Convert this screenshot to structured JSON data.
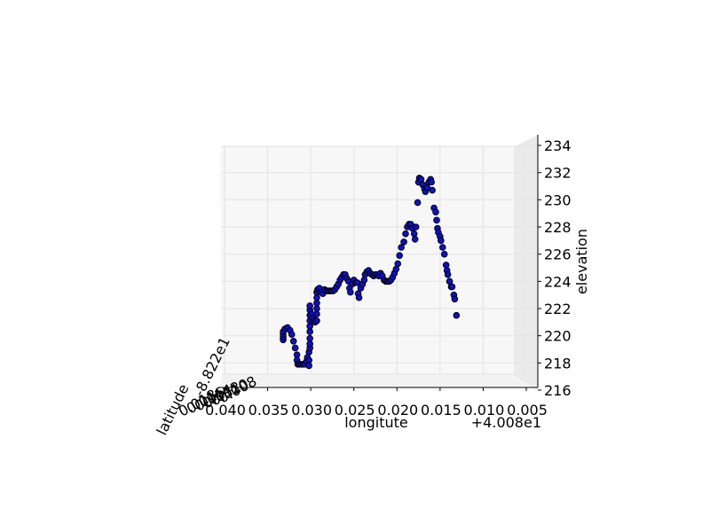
{
  "chart_data": {
    "type": "scatter",
    "projection": "3d",
    "xlabel": "longitute",
    "ylabel": "latitude",
    "zlabel": "elevation",
    "x_offset_label": "+4.008e1",
    "y_offset_label": "-8.822e1",
    "x_ticks": [
      "0.040",
      "0.035",
      "0.030",
      "0.025",
      "0.020",
      "0.015",
      "0.010",
      "0.005"
    ],
    "y_ticks": [
      "0.018",
      "0.016",
      "0.014",
      "0.012",
      "0.010",
      "0.008"
    ],
    "z_ticks": [
      "216",
      "218",
      "220",
      "222",
      "224",
      "226",
      "228",
      "230",
      "232",
      "234"
    ],
    "xlim": [
      0.04,
      0.005
    ],
    "zlim": [
      216,
      234
    ],
    "grid": true,
    "marker_color": "#1010c8",
    "marker_edge": "#000000",
    "pane_color": "#f2f2f2",
    "grid_color": "#e6e6e6",
    "points": [
      [
        0.0332,
        219.7
      ],
      [
        0.0332,
        219.9
      ],
      [
        0.0332,
        220.1
      ],
      [
        0.0332,
        220.3
      ],
      [
        0.033,
        220.5
      ],
      [
        0.0327,
        220.6
      ],
      [
        0.0324,
        220.4
      ],
      [
        0.0322,
        220.1
      ],
      [
        0.032,
        219.6
      ],
      [
        0.0318,
        219.1
      ],
      [
        0.0316,
        218.6
      ],
      [
        0.0316,
        218.2
      ],
      [
        0.0315,
        217.9
      ],
      [
        0.0313,
        217.9
      ],
      [
        0.0311,
        217.9
      ],
      [
        0.0309,
        217.9
      ],
      [
        0.0307,
        217.9
      ],
      [
        0.0305,
        218.1
      ],
      [
        0.0304,
        218.4
      ],
      [
        0.0302,
        218.2
      ],
      [
        0.0302,
        217.8
      ],
      [
        0.0302,
        218.8
      ],
      [
        0.0301,
        219.1
      ],
      [
        0.0301,
        219.4
      ],
      [
        0.0301,
        219.8
      ],
      [
        0.0301,
        220.3
      ],
      [
        0.0301,
        220.7
      ],
      [
        0.0301,
        221.1
      ],
      [
        0.0301,
        221.5
      ],
      [
        0.0301,
        221.9
      ],
      [
        0.0301,
        222.2
      ],
      [
        0.0299,
        221.6
      ],
      [
        0.0298,
        221.3
      ],
      [
        0.0297,
        221.1
      ],
      [
        0.0295,
        221.0
      ],
      [
        0.0293,
        221.1
      ],
      [
        0.0293,
        221.6
      ],
      [
        0.0293,
        222.0
      ],
      [
        0.0293,
        222.4
      ],
      [
        0.0293,
        222.8
      ],
      [
        0.0293,
        223.2
      ],
      [
        0.0292,
        223.4
      ],
      [
        0.029,
        223.5
      ],
      [
        0.0288,
        223.2
      ],
      [
        0.0286,
        223.1
      ],
      [
        0.0284,
        223.4
      ],
      [
        0.0282,
        223.3
      ],
      [
        0.028,
        223.3
      ],
      [
        0.0278,
        223.3
      ],
      [
        0.0276,
        223.3
      ],
      [
        0.0274,
        223.3
      ],
      [
        0.0272,
        223.4
      ],
      [
        0.027,
        223.6
      ],
      [
        0.0268,
        223.8
      ],
      [
        0.0266,
        224.1
      ],
      [
        0.0264,
        224.3
      ],
      [
        0.0262,
        224.5
      ],
      [
        0.026,
        224.5
      ],
      [
        0.0258,
        224.2
      ],
      [
        0.0256,
        224.0
      ],
      [
        0.0255,
        223.5
      ],
      [
        0.0254,
        223.2
      ],
      [
        0.0252,
        223.8
      ],
      [
        0.025,
        224.1
      ],
      [
        0.0248,
        223.9
      ],
      [
        0.0246,
        223.9
      ],
      [
        0.0245,
        223.1
      ],
      [
        0.0244,
        222.8
      ],
      [
        0.0242,
        223.5
      ],
      [
        0.024,
        223.8
      ],
      [
        0.0238,
        224.1
      ],
      [
        0.0237,
        224.5
      ],
      [
        0.0235,
        224.7
      ],
      [
        0.0233,
        224.8
      ],
      [
        0.0231,
        224.6
      ],
      [
        0.0229,
        224.5
      ],
      [
        0.0227,
        224.4
      ],
      [
        0.0225,
        224.5
      ],
      [
        0.0223,
        224.5
      ],
      [
        0.0221,
        224.4
      ],
      [
        0.0219,
        224.6
      ],
      [
        0.0217,
        224.4
      ],
      [
        0.0215,
        224.1
      ],
      [
        0.0213,
        224.0
      ],
      [
        0.0211,
        224.0
      ],
      [
        0.0209,
        224.0
      ],
      [
        0.0207,
        224.1
      ],
      [
        0.0205,
        224.3
      ],
      [
        0.0203,
        224.6
      ],
      [
        0.0201,
        224.9
      ],
      [
        0.0199,
        225.3
      ],
      [
        0.0197,
        225.9
      ],
      [
        0.0195,
        226.5
      ],
      [
        0.0192,
        226.9
      ],
      [
        0.019,
        227.5
      ],
      [
        0.0188,
        228.0
      ],
      [
        0.0186,
        228.2
      ],
      [
        0.0184,
        228.2
      ],
      [
        0.0182,
        227.9
      ],
      [
        0.018,
        227.5
      ],
      [
        0.0179,
        227.1
      ],
      [
        0.0178,
        228.0
      ],
      [
        0.0176,
        229.8
      ],
      [
        0.0175,
        231.3
      ],
      [
        0.0174,
        231.6
      ],
      [
        0.0172,
        231.5
      ],
      [
        0.017,
        231.1
      ],
      [
        0.0168,
        230.8
      ],
      [
        0.0167,
        230.6
      ],
      [
        0.0165,
        230.9
      ],
      [
        0.0163,
        231.3
      ],
      [
        0.0161,
        231.5
      ],
      [
        0.016,
        231.3
      ],
      [
        0.0159,
        230.7
      ],
      [
        0.0157,
        229.4
      ],
      [
        0.0155,
        229.1
      ],
      [
        0.0154,
        228.5
      ],
      [
        0.0153,
        227.9
      ],
      [
        0.0152,
        227.6
      ],
      [
        0.015,
        227.3
      ],
      [
        0.0149,
        227.0
      ],
      [
        0.0147,
        226.5
      ],
      [
        0.0145,
        226.0
      ],
      [
        0.0143,
        225.2
      ],
      [
        0.0142,
        224.8
      ],
      [
        0.0141,
        224.5
      ],
      [
        0.0139,
        224.0
      ],
      [
        0.0137,
        223.6
      ],
      [
        0.0136,
        223.6
      ],
      [
        0.0134,
        223.0
      ],
      [
        0.0133,
        222.7
      ],
      [
        0.0131,
        221.5
      ]
    ]
  }
}
